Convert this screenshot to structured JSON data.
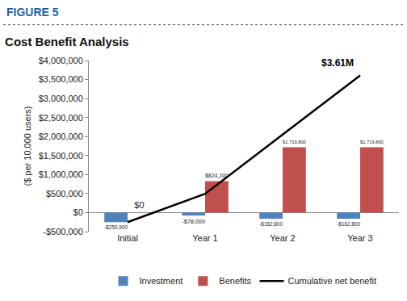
{
  "chart_data": {
    "type": "bar",
    "figure_label": "FIGURE 5",
    "title": "Cost Benefit Analysis",
    "y_label": "($ per 10,000 users)",
    "categories": [
      "Initial",
      "Year 1",
      "Year 2",
      "Year 3"
    ],
    "series": [
      {
        "name": "Investment",
        "type": "bar",
        "color": "#4f81bd",
        "values": [
          -250900,
          -78000,
          -162800,
          -162800
        ],
        "value_labels": [
          "-$250,900",
          "-$78,000",
          "-$162,800",
          "-$162,800"
        ]
      },
      {
        "name": "Benefits",
        "type": "bar",
        "color": "#c0504d",
        "values": [
          0,
          824100,
          1719800,
          1719800
        ],
        "value_labels": [
          "$0",
          "$824,100",
          "$1,719,800",
          "$1,719,800"
        ]
      },
      {
        "name": "Cumulative net benefit",
        "type": "line",
        "color": "#000000",
        "line_style": "solid",
        "values": [
          -250900,
          495200,
          2052200,
          3609200
        ]
      }
    ],
    "annotations": [
      {
        "text": "$3.61M",
        "category": "Year 3",
        "series": "Cumulative net benefit"
      }
    ],
    "ylim": [
      -500000,
      4000000
    ],
    "yticks": [
      {
        "value": -500000,
        "label": "-$500,000"
      },
      {
        "value": 0,
        "label": "$0"
      },
      {
        "value": 500000,
        "label": "$500,000"
      },
      {
        "value": 1000000,
        "label": "$1,000,000"
      },
      {
        "value": 1500000,
        "label": "$1,500,000"
      },
      {
        "value": 2000000,
        "label": "$2,000,000"
      },
      {
        "value": 2500000,
        "label": "$2,500,000"
      },
      {
        "value": 3000000,
        "label": "$3,000,000"
      },
      {
        "value": 3500000,
        "label": "$3,500,000"
      },
      {
        "value": 4000000,
        "label": "$4,000,000"
      }
    ],
    "grid": false,
    "legend": "bottom",
    "data_labels": true
  }
}
